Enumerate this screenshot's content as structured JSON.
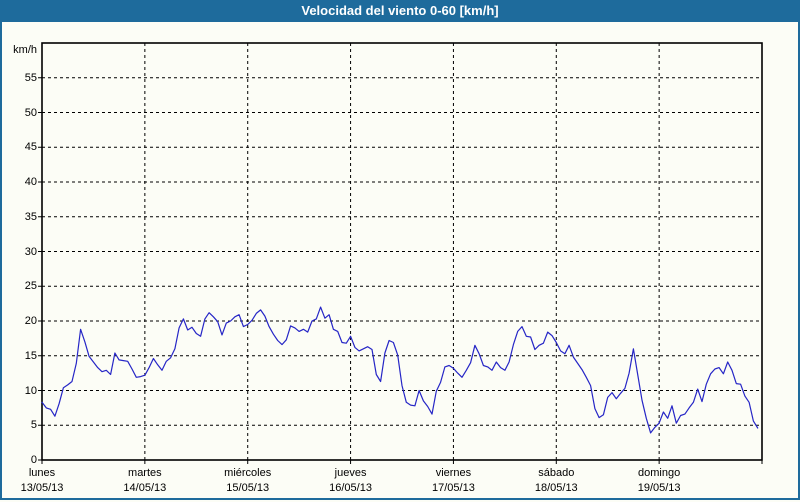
{
  "title": "Velocidad del viento 0-60 [km/h]",
  "colors": {
    "header_bg": "#1e6b9c",
    "header_text": "#ffffff",
    "page_background": "#fcfdf6",
    "border": "#1e6b9c",
    "axis": "#000000",
    "grid": "#000000",
    "line": "#2626c6"
  },
  "chart_data": {
    "type": "line",
    "title": "Velocidad del viento 0-60 [km/h]",
    "ylabel": "km/h",
    "unit_label": "km/h",
    "ylim": [
      0,
      60
    ],
    "y_ticks": [
      0,
      5,
      10,
      15,
      20,
      25,
      30,
      35,
      40,
      45,
      50,
      55
    ],
    "grid": true,
    "grid_style": "dashed",
    "legend": "none",
    "x_resolution_hours": 1,
    "x_total_hours": 168,
    "days": [
      {
        "name": "lunes",
        "date": "13/05/13"
      },
      {
        "name": "martes",
        "date": "14/05/13"
      },
      {
        "name": "miércoles",
        "date": "15/05/13"
      },
      {
        "name": "jueves",
        "date": "16/05/13"
      },
      {
        "name": "viernes",
        "date": "17/05/13"
      },
      {
        "name": "sábado",
        "date": "18/05/13"
      },
      {
        "name": "domingo",
        "date": "19/05/13"
      }
    ],
    "series": [
      {
        "name": "Velocidad del viento",
        "unit": "km/h",
        "values": [
          8.3,
          7.5,
          7.3,
          6.3,
          8.1,
          10.4,
          10.8,
          11.3,
          13.9,
          18.8,
          17.0,
          14.9,
          14.1,
          13.3,
          12.7,
          12.9,
          12.3,
          15.4,
          14.4,
          14.3,
          14.2,
          13.1,
          11.9,
          12.0,
          12.2,
          13.3,
          14.6,
          13.7,
          12.9,
          14.2,
          14.7,
          16.0,
          19.0,
          20.3,
          18.7,
          19.1,
          18.2,
          17.8,
          20.3,
          21.2,
          20.6,
          19.9,
          18.0,
          19.7,
          20.0,
          20.6,
          20.9,
          19.2,
          19.5,
          20.1,
          21.1,
          21.6,
          20.7,
          19.2,
          18.1,
          17.2,
          16.6,
          17.3,
          19.3,
          19.0,
          18.5,
          18.8,
          18.4,
          20.0,
          20.3,
          22.0,
          20.4,
          20.9,
          18.8,
          18.5,
          16.9,
          16.8,
          17.8,
          16.2,
          15.7,
          16.0,
          16.3,
          15.9,
          12.3,
          11.3,
          15.4,
          17.2,
          16.9,
          15.1,
          10.7,
          8.3,
          7.9,
          7.8,
          10.0,
          8.5,
          7.7,
          6.6,
          9.9,
          11.2,
          13.4,
          13.6,
          13.2,
          12.5,
          11.9,
          12.9,
          14.0,
          16.5,
          15.3,
          13.6,
          13.4,
          12.9,
          14.1,
          13.3,
          12.9,
          14.1,
          16.6,
          18.5,
          19.2,
          17.8,
          17.7,
          15.9,
          16.5,
          16.8,
          18.4,
          17.9,
          16.9,
          15.7,
          15.3,
          16.5,
          14.8,
          13.9,
          13.0,
          11.9,
          10.7,
          7.4,
          6.1,
          6.5,
          9.0,
          9.7,
          8.8,
          9.6,
          10.3,
          12.5,
          16.0,
          12.3,
          8.6,
          6.0,
          3.9,
          4.7,
          5.3,
          6.9,
          6.0,
          7.8,
          5.3,
          6.4,
          6.6,
          7.5,
          8.3,
          10.2,
          8.4,
          10.9,
          12.4,
          13.1,
          13.3,
          12.4,
          14.1,
          12.9,
          11.0,
          10.9,
          9.2,
          8.3,
          5.6,
          4.6
        ]
      }
    ]
  }
}
